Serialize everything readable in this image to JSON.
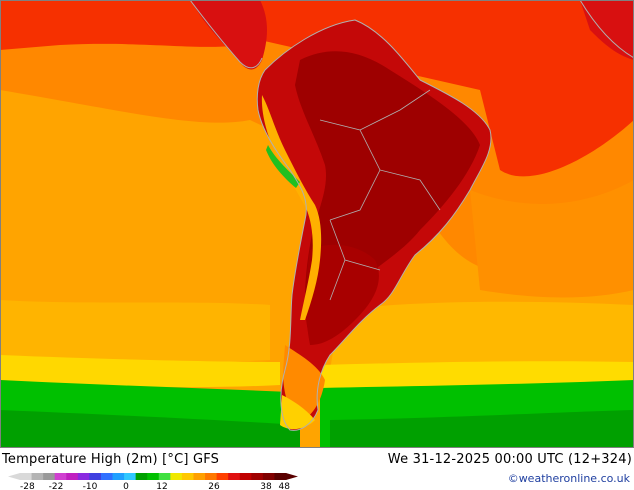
{
  "map": {
    "region": "South America",
    "variable": "Temperature High (2m)",
    "unit": "°C",
    "model": "GFS"
  },
  "footer": {
    "title": "Temperature High (2m) [°C] GFS",
    "datetime": "We 31-12-2025 00:00 UTC (12+324)",
    "credit": "©weatheronline.co.uk"
  },
  "legend": {
    "ticks": [
      "-28",
      "-22",
      "-10",
      "0",
      "12",
      "26",
      "38",
      "48"
    ],
    "colors": [
      "#d9d9d9",
      "#b4b4b4",
      "#9a9a9a",
      "#d040d0",
      "#c020c0",
      "#8a2ae0",
      "#4040e0",
      "#3070ff",
      "#20a0ff",
      "#30c8ff",
      "#00a000",
      "#00c000",
      "#40e040",
      "#f0e800",
      "#ffc800",
      "#ffa000",
      "#ff7800",
      "#ff4000",
      "#e01010",
      "#c00000",
      "#a00000",
      "#800000",
      "#5a0000"
    ]
  },
  "colors": {
    "ocean_warm": "#ff9a00",
    "ocean_hot": "#f62800",
    "land_hot": "#c80808",
    "land_extreme": "#9a0000",
    "mid_lat": "#ffc000",
    "cool": "#00b400",
    "coast": "#b0b0b0"
  }
}
